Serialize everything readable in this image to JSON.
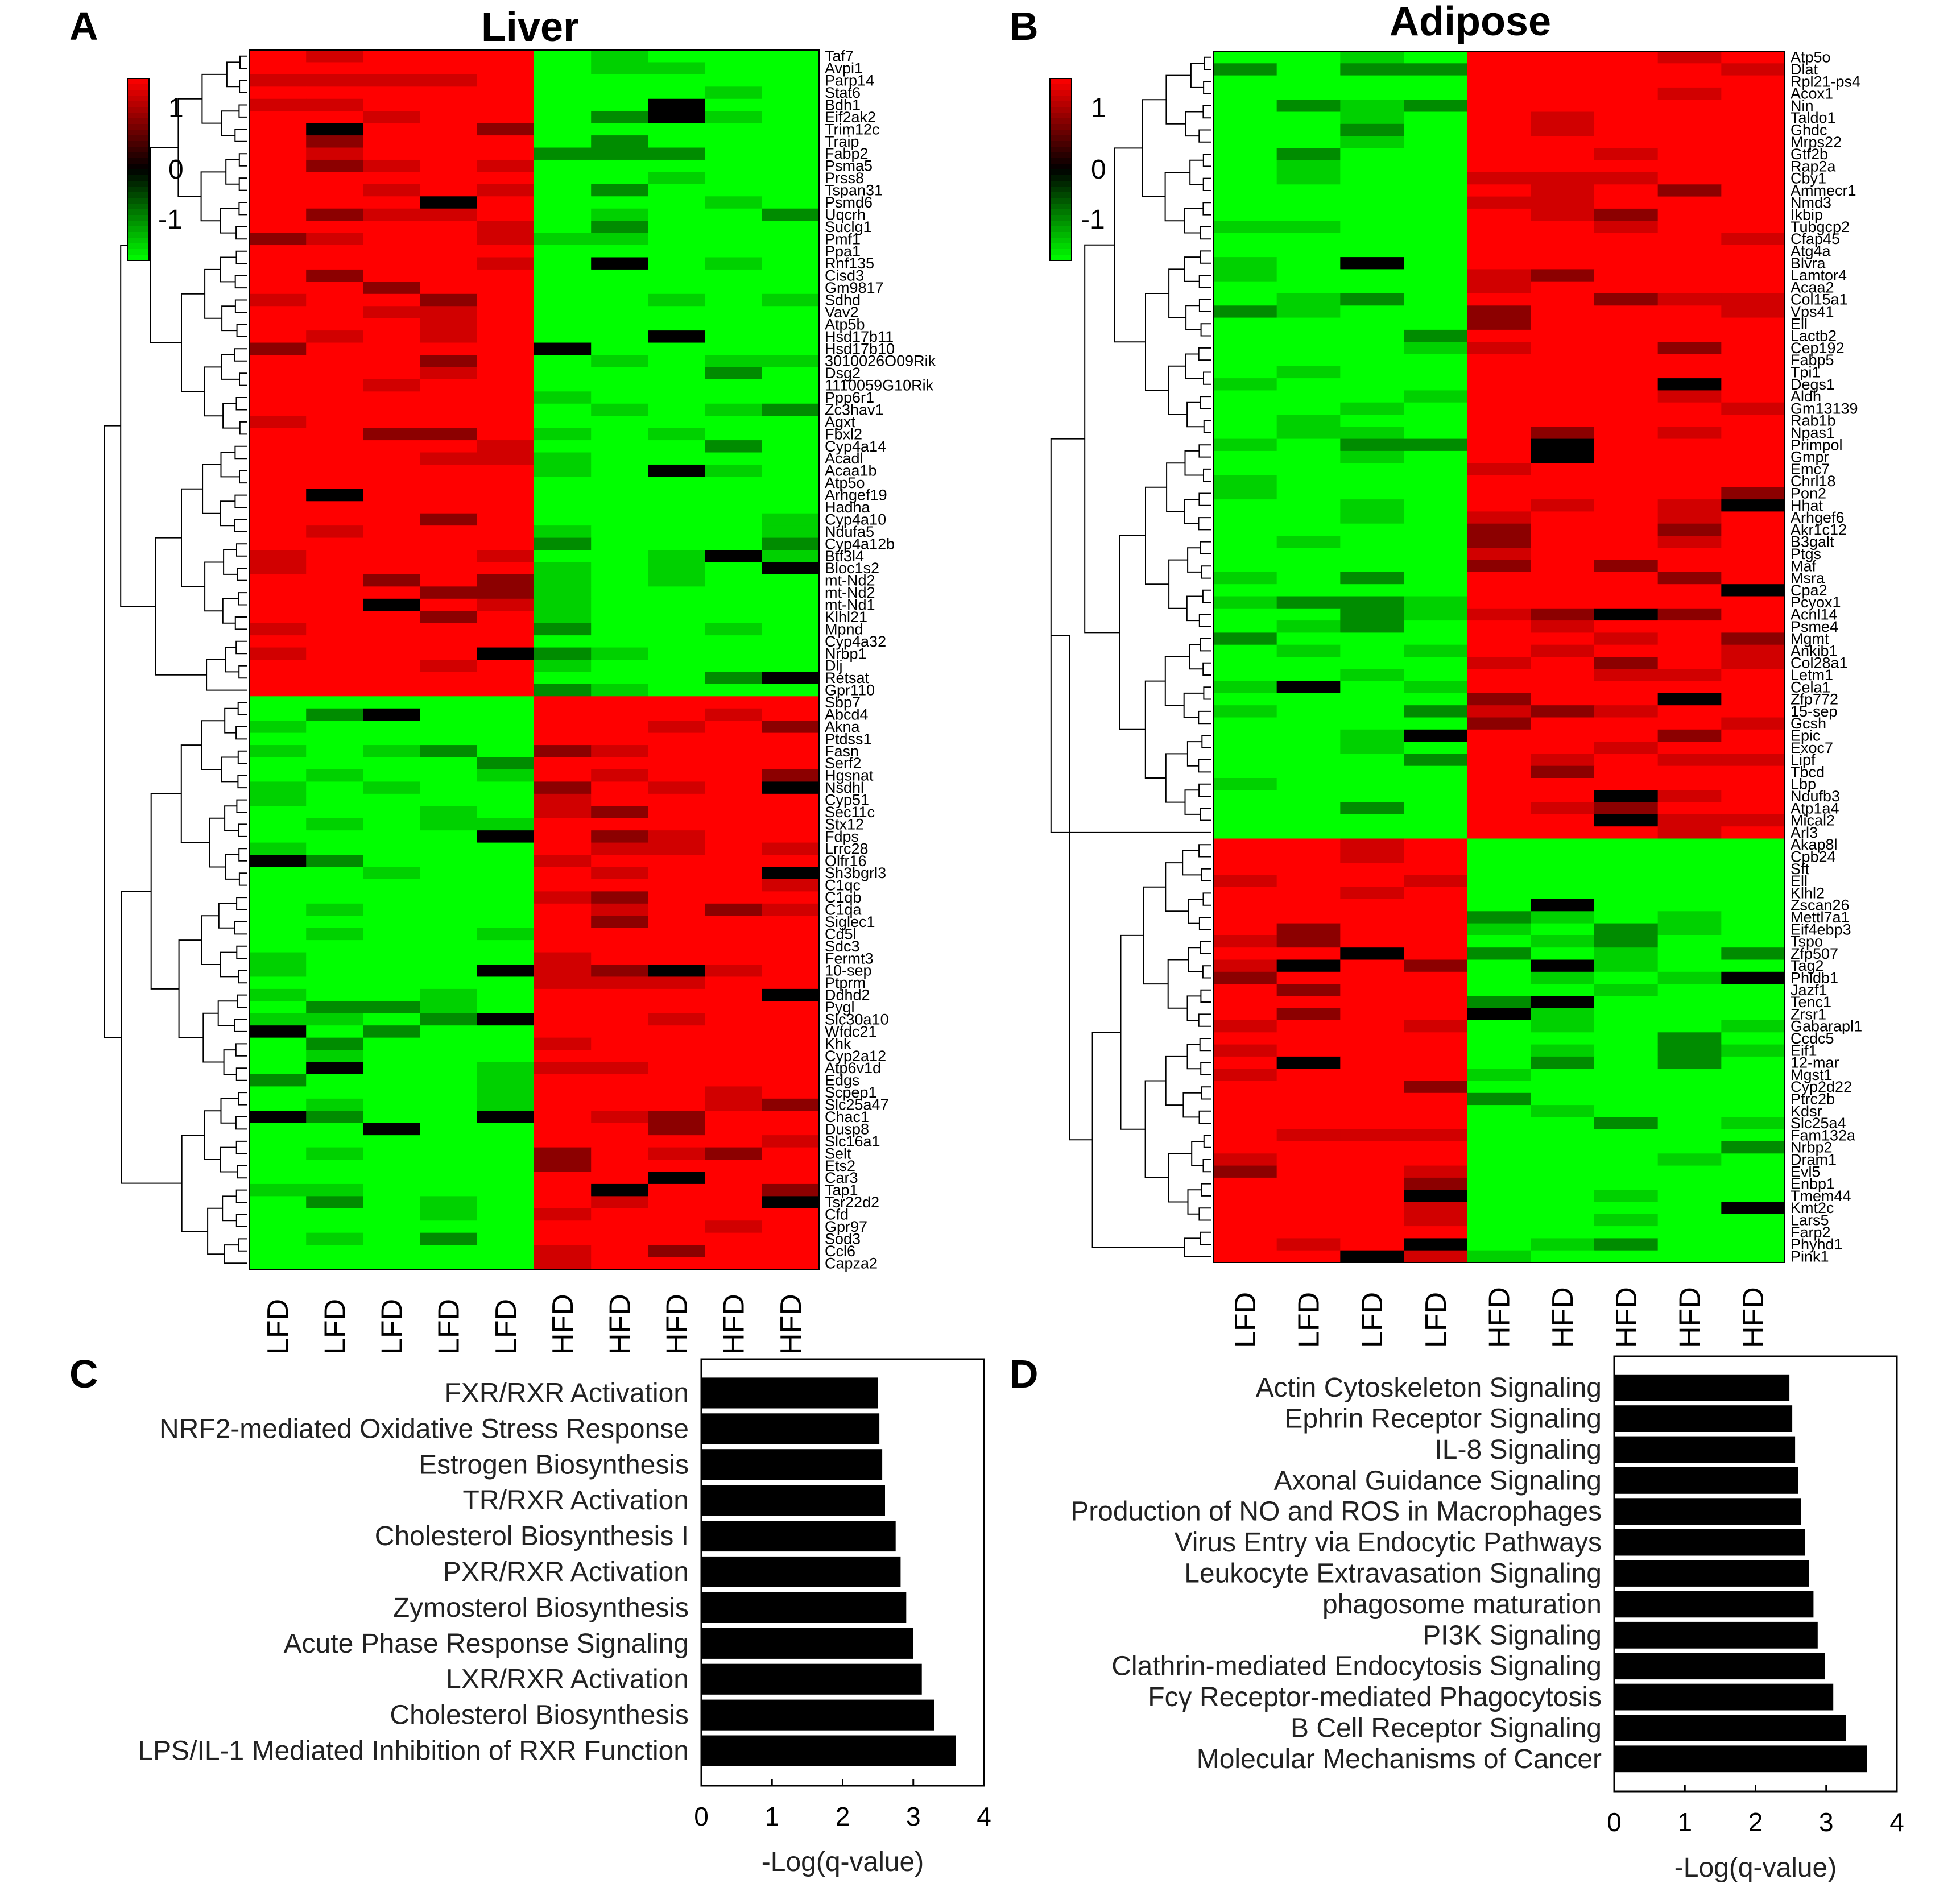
{
  "panels": {
    "A": {
      "letter": "A",
      "title": "Liver"
    },
    "B": {
      "letter": "B",
      "title": "Adipose"
    },
    "C": {
      "letter": "C"
    },
    "D": {
      "letter": "D"
    }
  },
  "colorbar": {
    "ticks": [
      "1",
      "0",
      "-1"
    ],
    "colors": {
      "high": "#ff0000",
      "mid": "#000000",
      "low": "#00ff00"
    }
  },
  "chart_data": [
    {
      "type": "heatmap",
      "title": "Liver",
      "samples": [
        "LFD",
        "LFD",
        "LFD",
        "LFD",
        "LFD",
        "HFD",
        "HFD",
        "HFD",
        "HFD",
        "HFD"
      ],
      "genes": [
        "Taf7",
        "Avpi1",
        "Parp14",
        "Stat6",
        "Bdh1",
        "Eif2ak2",
        "Trim12c",
        "Traip",
        "Fabp2",
        "Psma5",
        "Prss8",
        "Tspan31",
        "Psmd6",
        "Uqcrh",
        "Suclg1",
        "Pmf1",
        "Ppa1",
        "Rnf135",
        "Cisd3",
        "Gm9817",
        "Sdhd",
        "Vav2",
        "Atp5b",
        "Hsd17b11",
        "Hsd17b10",
        "3010026O09Rik",
        "Dsg2",
        "1110059G10Rik",
        "Ppp6r1",
        "Zc3hav1",
        "Agxt",
        "Fbxl2",
        "Cyp4a14",
        "Acadl",
        "Acaa1b",
        "Atp5o",
        "Arhgef19",
        "Hadha",
        "Cyp4a10",
        "Ndufa5",
        "Cyp4a12b",
        "Btf3l4",
        "Bloc1s2",
        "mt-Nd2",
        "mt-Nd2",
        "mt-Nd1",
        "Klhl21",
        "Mpnd",
        "Cyp4a32",
        "Nrbp1",
        "Dlj",
        "Retsat",
        "Gpr110",
        "Sbp7",
        "Abcd4",
        "Akna",
        "Ptdss1",
        "Fasn",
        "Serf2",
        "Hgsnat",
        "Nsdhl",
        "Cyp51",
        "Sec11c",
        "Stx12",
        "Fdps",
        "Lrrc28",
        "Olfr16",
        "Sh3bgrl3",
        "C1qc",
        "C1qb",
        "C1qa",
        "Siglec1",
        "Cd5l",
        "Sdc3",
        "Fermt3",
        "10-sep",
        "Ptprm",
        "Ddhd2",
        "Pygl",
        "Slc30a10",
        "Wfdc21",
        "Khk",
        "Cyp2a12",
        "Atp6v1d",
        "Edgs",
        "Scpep1",
        "Slc25a47",
        "Chac1",
        "Dusp8",
        "Slc16a1",
        "Selt",
        "Ets2",
        "Car3",
        "Tap1",
        "Tsr22d2",
        "Cfd",
        "Gpr97",
        "Sod3",
        "Ccl6",
        "Capza2"
      ],
      "clusters": [
        {
          "genes": "Taf7 – Gpr110",
          "LFD": "high (~1)",
          "HFD": "low (~-1)"
        },
        {
          "genes": "Sbp7 – Capza2",
          "LFD": "low (~-1)",
          "HFD": "high (~1)"
        }
      ],
      "color_scale": {
        "min": -1,
        "max": 1,
        "low": "green",
        "mid": "black",
        "high": "red"
      }
    },
    {
      "type": "heatmap",
      "title": "Adipose",
      "samples": [
        "LFD",
        "LFD",
        "LFD",
        "LFD",
        "HFD",
        "HFD",
        "HFD",
        "HFD",
        "HFD"
      ],
      "genes": [
        "Atp5o",
        "Dlat",
        "Rpl21-ps4",
        "Acox1",
        "Nin",
        "Taldo1",
        "Ghdc",
        "Mrps22",
        "Gtf2b",
        "Rap2a",
        "Cby1",
        "Ammecr1",
        "Nmd3",
        "Ikbip",
        "Tubgcp2",
        "Cfap45",
        "Atg4a",
        "Blvra",
        "Lamtor4",
        "Acaa2",
        "Col15a1",
        "Vps41",
        "Ell",
        "Lactb2",
        "Cep192",
        "Fabp5",
        "Tpi1",
        "Degs1",
        "Aldh",
        "Gm13139",
        "Rab1b",
        "Npas1",
        "Primpol",
        "Gmpr",
        "Emc7",
        "Chrl18",
        "Pon2",
        "Hhat",
        "Arhgef6",
        "Akr1c12",
        "B3galt",
        "Ptgs",
        "Maf",
        "Msra",
        "Cpa2",
        "Pcyox1",
        "Acnl14",
        "Psme4",
        "Mgmt",
        "Ankib1",
        "Col28a1",
        "Letm1",
        "Cela1",
        "Zfp772",
        "15-sep",
        "Gcsh",
        "Epic",
        "Exoc7",
        "Lipf",
        "Tbcd",
        "Lbp",
        "Ndufb3",
        "Atp1a4",
        "Mical2",
        "Arl3",
        "Akap8l",
        "Cpb24",
        "Sft",
        "Ell",
        "Klhl2",
        "Zscan26",
        "Mettl7a1",
        "Eif4ebp3",
        "Tspo",
        "Zfp507",
        "Tag2",
        "Phldb1",
        "Jazf1",
        "Tenc1",
        "Zrsr1",
        "Gabarapl1",
        "Ccdc5",
        "Eif1",
        "12-mar",
        "Mgst1",
        "Cyp2d22",
        "Ptrc2b",
        "Kdsr",
        "Slc25a4",
        "Fam132a",
        "Nrbp2",
        "Dram1",
        "Evl5",
        "Enbp1",
        "Tmem44",
        "Kmt2c",
        "Lars5",
        "Farp2",
        "Phyhd1",
        "Pink1"
      ],
      "clusters": [
        {
          "genes": "Atp5o – Mical2",
          "LFD": "low (~-1)",
          "HFD": "high (~1)"
        },
        {
          "genes": "Arl3 – Pink1",
          "LFD": "high (~1)",
          "HFD": "low (~-1)"
        }
      ],
      "color_scale": {
        "min": -1,
        "max": 1,
        "low": "green",
        "mid": "black",
        "high": "red"
      }
    },
    {
      "type": "bar",
      "orientation": "horizontal",
      "categories": [
        "FXR/RXR Activation",
        "NRF2-mediated Oxidative Stress Response",
        "Estrogen Biosynthesis",
        "TR/RXR Activation",
        "Cholesterol Biosynthesis I",
        "PXR/RXR Activation",
        "Zymosterol Biosynthesis",
        "Acute Phase Response Signaling",
        "LXR/RXR Activation",
        "Cholesterol Biosynthesis",
        "LPS/IL-1 Mediated Inhibition of RXR Function"
      ],
      "values": [
        2.5,
        2.52,
        2.56,
        2.6,
        2.75,
        2.82,
        2.9,
        3.0,
        3.12,
        3.3,
        3.6
      ],
      "xlabel": "-Log(q-value)",
      "xlim": [
        0,
        4
      ],
      "xticks": [
        "0",
        "1",
        "2",
        "3",
        "4"
      ],
      "color": "#000000"
    },
    {
      "type": "bar",
      "orientation": "horizontal",
      "categories": [
        "Actin Cytoskeleton Signaling",
        "Ephrin Receptor Signaling",
        "IL-8 Signaling",
        "Axonal Guidance Signaling",
        "Production of NO and ROS in Macrophages",
        "Virus Entry via Endocytic Pathways",
        "Leukocyte Extravasation Signaling",
        "phagosome maturation",
        "PI3K Signaling",
        "Clathrin-mediated Endocytosis Signaling",
        "Fcγ Receptor-mediated Phagocytosis",
        "B Cell Receptor Signaling",
        "Molecular Mechanisms of Cancer"
      ],
      "values": [
        2.48,
        2.52,
        2.56,
        2.6,
        2.64,
        2.7,
        2.76,
        2.82,
        2.88,
        2.98,
        3.1,
        3.28,
        3.58
      ],
      "xlabel": "-Log(q-value)",
      "xlim": [
        0,
        4
      ],
      "xticks": [
        "0",
        "1",
        "2",
        "3",
        "4"
      ],
      "color": "#000000"
    }
  ]
}
